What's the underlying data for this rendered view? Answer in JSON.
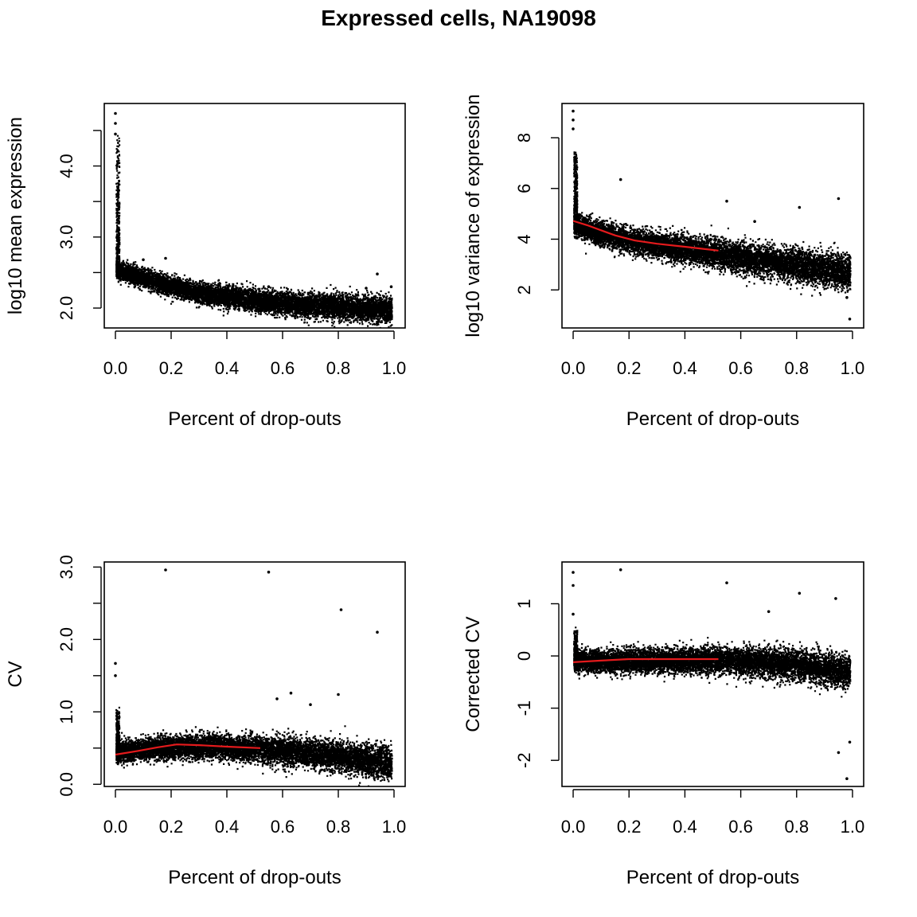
{
  "title": "Expressed cells, NA19098",
  "chart_data": [
    {
      "type": "scatter",
      "xlabel": "Percent of drop-outs",
      "ylabel": "log10 mean expression",
      "xlim": [
        -0.04,
        1.04
      ],
      "ylim": [
        1.72,
        4.88
      ],
      "x_ticks": [
        "0.0",
        "0.2",
        "0.4",
        "0.6",
        "0.8",
        "1.0"
      ],
      "y_ticks": [
        "2.0",
        "3.0",
        "4.0"
      ],
      "y_minor_ticks": [
        2.5,
        3.5,
        4.5
      ],
      "cloud": {
        "points": 9000,
        "xmax": 0.99,
        "center": [
          2.55,
          2.35,
          2.2,
          2.12,
          2.06,
          2.02,
          1.98
        ],
        "spread": 0.06,
        "spike_max": 4.4
      },
      "outliers": [
        [
          0.0,
          4.74
        ],
        [
          0.0,
          4.6
        ],
        [
          0.0,
          4.45
        ],
        [
          0.18,
          2.7
        ],
        [
          0.1,
          2.68
        ],
        [
          0.94,
          2.48
        ],
        [
          0.99,
          2.3
        ],
        [
          0.55,
          2.3
        ],
        [
          0.9,
          2.28
        ]
      ],
      "fit": null
    },
    {
      "type": "scatter",
      "xlabel": "Percent of drop-outs",
      "ylabel": "log10 variance of expression",
      "xlim": [
        -0.04,
        1.04
      ],
      "ylim": [
        0.5,
        9.35
      ],
      "x_ticks": [
        "0.0",
        "0.2",
        "0.4",
        "0.6",
        "0.8",
        "1.0"
      ],
      "y_ticks": [
        "2",
        "4",
        "6",
        "8"
      ],
      "y_minor_ticks": [],
      "cloud": {
        "points": 9000,
        "xmax": 0.99,
        "center": [
          4.6,
          4.05,
          3.75,
          3.5,
          3.2,
          2.95,
          2.7
        ],
        "spread": 0.22,
        "spike_max": 7.4
      },
      "outliers": [
        [
          0.0,
          9.05
        ],
        [
          0.0,
          8.7
        ],
        [
          0.0,
          8.35
        ],
        [
          0.17,
          6.35
        ],
        [
          0.55,
          5.5
        ],
        [
          0.81,
          5.25
        ],
        [
          0.95,
          5.6
        ],
        [
          0.65,
          4.7
        ],
        [
          0.99,
          0.85
        ],
        [
          0.98,
          1.7
        ]
      ],
      "fit": {
        "x": [
          0.0,
          0.05,
          0.1,
          0.15,
          0.22,
          0.3,
          0.4,
          0.52
        ],
        "y": [
          4.72,
          4.55,
          4.35,
          4.15,
          3.95,
          3.82,
          3.7,
          3.55
        ]
      }
    },
    {
      "type": "scatter",
      "xlabel": "Percent of drop-outs",
      "ylabel": "CV",
      "xlim": [
        -0.04,
        1.04
      ],
      "ylim": [
        -0.03,
        3.07
      ],
      "x_ticks": [
        "0.0",
        "0.2",
        "0.4",
        "0.6",
        "0.8",
        "1.0"
      ],
      "y_ticks": [
        "0.0",
        "1.0",
        "2.0",
        "3.0"
      ],
      "y_minor_ticks": [
        0.5,
        1.5,
        2.5
      ],
      "cloud": {
        "points": 9000,
        "xmax": 0.99,
        "center": [
          0.45,
          0.52,
          0.53,
          0.5,
          0.45,
          0.38,
          0.3
        ],
        "spread": 0.07,
        "spike_max": 1.0
      },
      "outliers": [
        [
          0.18,
          2.96
        ],
        [
          0.55,
          2.93
        ],
        [
          0.81,
          2.41
        ],
        [
          0.94,
          2.1
        ],
        [
          0.0,
          1.67
        ],
        [
          0.0,
          1.5
        ],
        [
          0.63,
          1.26
        ],
        [
          0.8,
          1.24
        ],
        [
          0.58,
          1.18
        ],
        [
          0.7,
          1.1
        ]
      ],
      "fit": {
        "x": [
          0.0,
          0.08,
          0.15,
          0.22,
          0.3,
          0.4,
          0.52
        ],
        "y": [
          0.41,
          0.46,
          0.51,
          0.55,
          0.54,
          0.52,
          0.5
        ]
      }
    },
    {
      "type": "scatter",
      "xlabel": "Percent of drop-outs",
      "ylabel": "Corrected CV",
      "xlim": [
        -0.04,
        1.04
      ],
      "ylim": [
        -2.5,
        1.8
      ],
      "x_ticks": [
        "0.0",
        "0.2",
        "0.4",
        "0.6",
        "0.8",
        "1.0"
      ],
      "y_ticks": [
        "-2",
        "-1",
        "0",
        "1"
      ],
      "y_minor_ticks": [],
      "cloud": {
        "points": 9000,
        "xmax": 0.99,
        "center": [
          -0.1,
          -0.08,
          -0.07,
          -0.07,
          -0.1,
          -0.17,
          -0.3
        ],
        "spread": 0.1,
        "spike_max": 0.45
      },
      "outliers": [
        [
          0.17,
          1.65
        ],
        [
          0.0,
          1.6
        ],
        [
          0.0,
          1.35
        ],
        [
          0.55,
          1.4
        ],
        [
          0.81,
          1.2
        ],
        [
          0.94,
          1.1
        ],
        [
          0.98,
          -2.35
        ],
        [
          0.95,
          -1.85
        ],
        [
          0.99,
          -1.65
        ],
        [
          0.0,
          0.8
        ],
        [
          0.7,
          0.85
        ]
      ],
      "fit": {
        "x": [
          0.0,
          0.1,
          0.2,
          0.3,
          0.4,
          0.52
        ],
        "y": [
          -0.12,
          -0.09,
          -0.06,
          -0.06,
          -0.06,
          -0.06
        ]
      }
    }
  ]
}
